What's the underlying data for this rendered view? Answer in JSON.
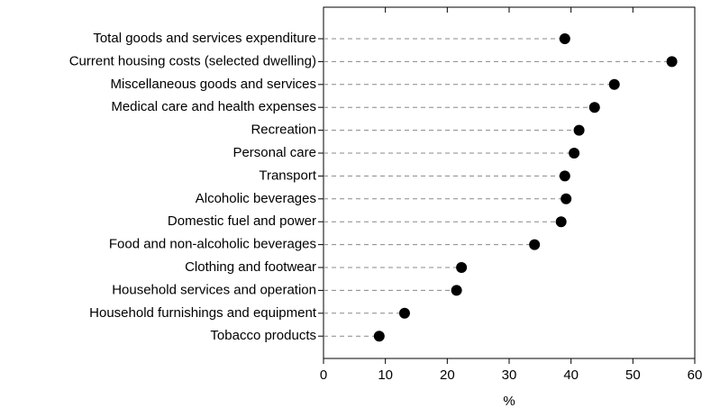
{
  "chart_data": {
    "type": "dot",
    "xlabel": "%",
    "categories": [
      "Total goods and services expenditure",
      "Current housing costs (selected dwelling)",
      "Miscellaneous goods and services",
      "Medical care and health expenses",
      "Recreation",
      "Personal care",
      "Transport",
      "Alcoholic beverages",
      "Domestic fuel and power",
      "Food and non-alcoholic beverages",
      "Clothing and footwear",
      "Household services and operation",
      "Household furnishings and equipment",
      "Tobacco products"
    ],
    "values": [
      39.0,
      56.3,
      47.0,
      43.8,
      41.3,
      40.5,
      39.0,
      39.2,
      38.4,
      34.1,
      22.3,
      21.5,
      13.1,
      9.0
    ],
    "color": "#000000",
    "xlim": [
      0,
      60
    ],
    "xticks": [
      0,
      10,
      20,
      30,
      40,
      50,
      60
    ]
  }
}
